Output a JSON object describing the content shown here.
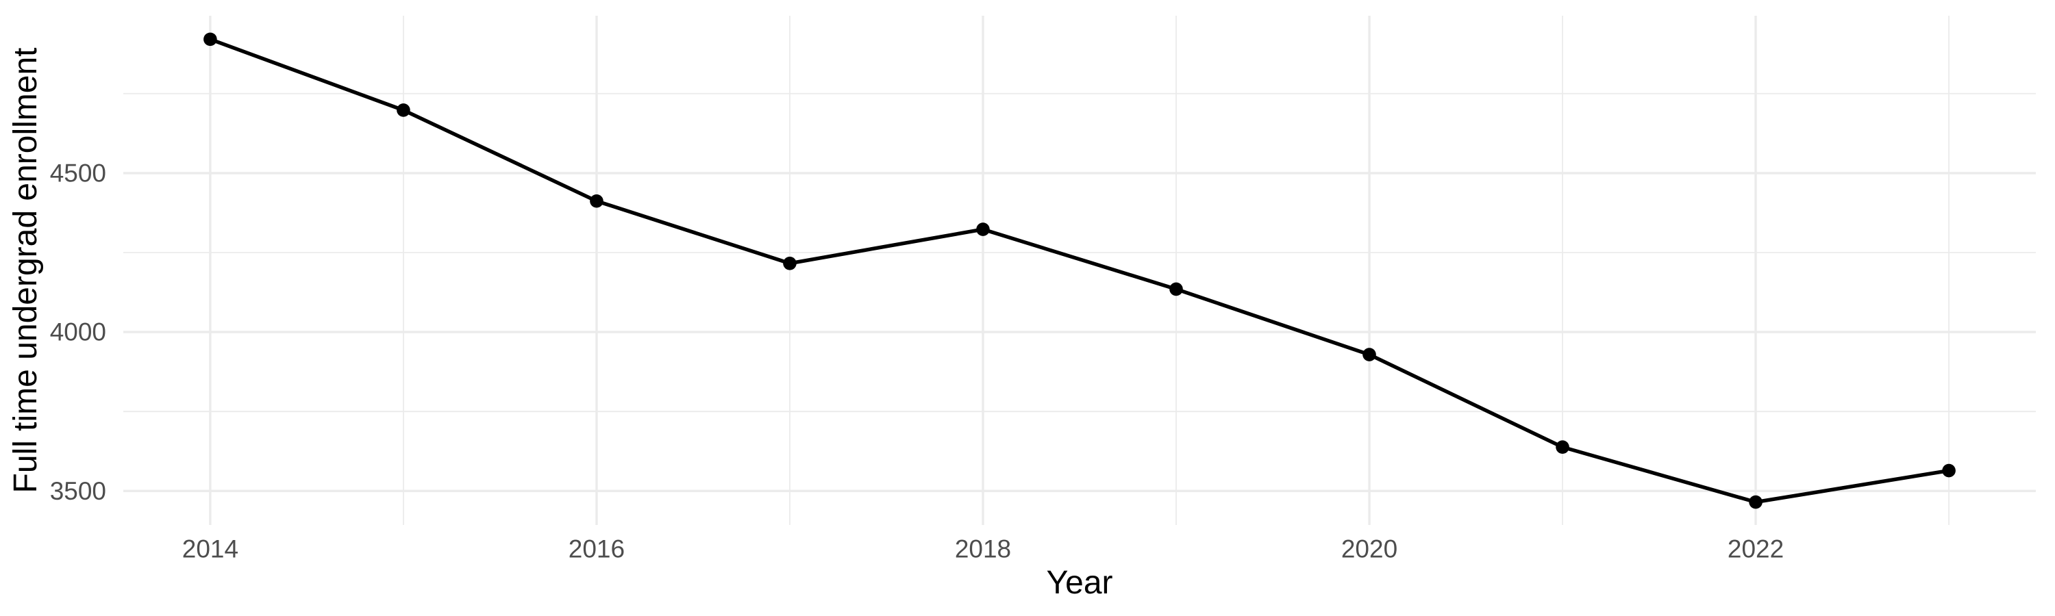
{
  "chart_data": {
    "type": "line",
    "title": "",
    "xlabel": "Year",
    "ylabel": "Full time undergrad enrollment",
    "x": [
      2014,
      2015,
      2016,
      2017,
      2018,
      2019,
      2020,
      2021,
      2022,
      2023
    ],
    "values": [
      4921,
      4698,
      4412,
      4216,
      4323,
      4135,
      3929,
      3638,
      3465,
      3564
    ],
    "series_name": "Full time undergrad enrollment",
    "xlim": [
      2013.55,
      2023.45
    ],
    "ylim": [
      3393,
      4995
    ],
    "x_major_ticks": [
      2014,
      2016,
      2018,
      2020,
      2022
    ],
    "x_minor_gridlines": [
      2015,
      2017,
      2019,
      2021,
      2023
    ],
    "y_major_ticks": [
      3500,
      4000,
      4500
    ],
    "y_minor_gridlines": [
      3750,
      4250,
      4750
    ],
    "grid": true,
    "legend": "none",
    "colors": {
      "line": "#000000",
      "point": "#000000",
      "grid": "#EBEBEB",
      "tick_label": "#4D4D4D",
      "axis_title": "#000000",
      "background": "#FFFFFF"
    }
  }
}
